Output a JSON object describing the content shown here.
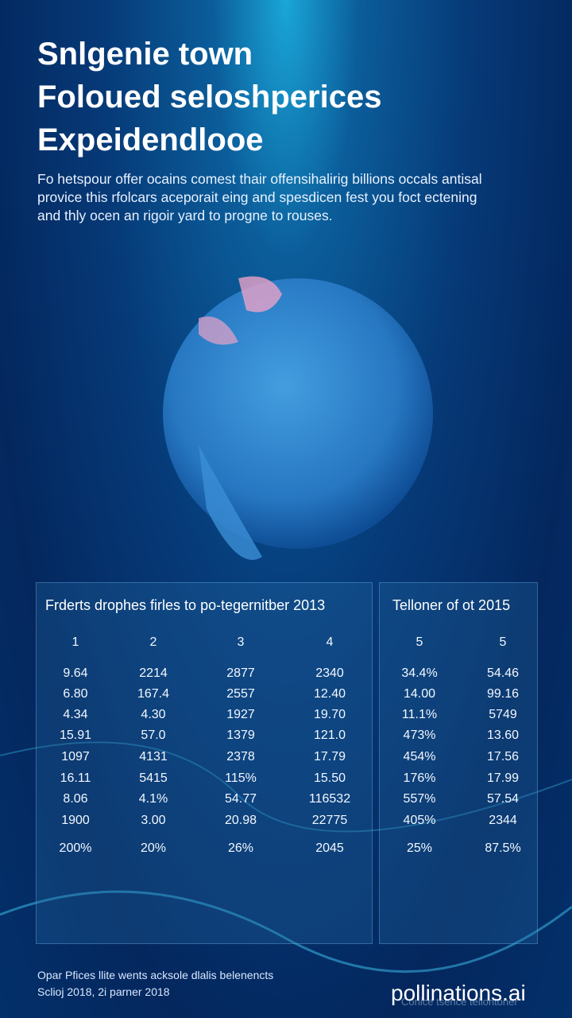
{
  "header": {
    "title_lines": [
      "Snlgenie town",
      "Foloued seloshperices",
      "Expeidendlooe"
    ],
    "paragraph_lines": [
      "Fo hetspour offer ocains comest thair offensihalirig billions occals antisal",
      "provice this rfolcars aceporait eing and spesdicen fest you foct ectening",
      "and thly ocen an rigoir yard to progne to rouses."
    ]
  },
  "tables": [
    {
      "title": "Frderts drophes firles to po-tegernitber 2013",
      "columns": [
        "1",
        "2",
        "3",
        "4"
      ],
      "rows": [
        [
          "9.64",
          "2214",
          "2877",
          "2340"
        ],
        [
          "6.80",
          "167.4",
          "2557",
          "12.40"
        ],
        [
          "4.34",
          "4.30",
          "1927",
          "19.70"
        ],
        [
          "15.91",
          "57.0",
          "1379",
          "121.0"
        ],
        [
          "1097",
          "4131",
          "2378",
          "17.79"
        ],
        [
          "16.11",
          "5415",
          "115%",
          "15.50"
        ],
        [
          "8.06",
          "4.1%",
          "54.77",
          "116532"
        ],
        [
          "1900",
          "3.00",
          "20.98",
          "22775"
        ],
        [
          "200%",
          "20%",
          "26%",
          "2045"
        ]
      ]
    },
    {
      "title": "Telloner of ot 2015",
      "columns": [
        "5",
        "5"
      ],
      "rows": [
        [
          "34.4%",
          "54.46"
        ],
        [
          "14.00",
          "99.16"
        ],
        [
          "11.1%",
          "5749"
        ],
        [
          "473%",
          "13.60"
        ],
        [
          "454%",
          "17.56"
        ],
        [
          "176%",
          "17.99"
        ],
        [
          "557%",
          "57.54"
        ],
        [
          "405%",
          "2344"
        ],
        [
          "25%",
          "87.5%"
        ]
      ]
    }
  ],
  "footer": {
    "lines": [
      "Opar Pfices llite wents acksole dlalis belenencts",
      "Sclioj 2018, 2i parner 2018"
    ],
    "faint": "Conice tsence tellontoner",
    "watermark": "pollinations.ai"
  }
}
